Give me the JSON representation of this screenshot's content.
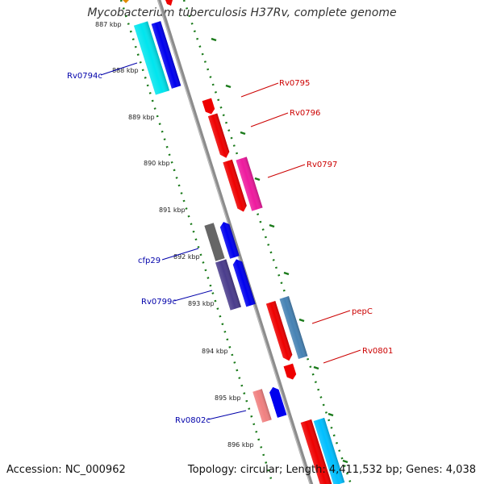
{
  "title": "Mycobacterium tuberculosis H37Rv, complete genome",
  "footer": {
    "accession": "Accession: NC_000962",
    "summary": "Topology: circular; Length: 4,411,532 bp; Genes: 4,038"
  },
  "ruler": {
    "ticks": [
      "887 kbp",
      "888 kbp",
      "889 kbp",
      "890 kbp",
      "891 kbp",
      "892 kbp",
      "893 kbp",
      "894 kbp",
      "895 kbp",
      "896 kbp"
    ]
  },
  "colors": {
    "backbone": "#8c8c8c",
    "forward_label": "#cc0000",
    "reverse_label": "#0000aa",
    "tick_dots": "#1a7a1a"
  },
  "genes": [
    {
      "name": "Rv0794c",
      "strand": "reverse",
      "color": "#00e5ee"
    },
    {
      "name": "",
      "strand": "reverse",
      "color": "#0000ee"
    },
    {
      "name": "Rv0795",
      "strand": "forward",
      "color": "#ee0000"
    },
    {
      "name": "Rv0796",
      "strand": "forward",
      "color": "#ee0000"
    },
    {
      "name": "Rv0797",
      "strand": "forward",
      "color": "#ee0000"
    },
    {
      "name": "",
      "strand": "forward",
      "color": "#ee1a9e"
    },
    {
      "name": "cfp29",
      "strand": "reverse",
      "color": "#0000ee"
    },
    {
      "name": "",
      "strand": "reverse",
      "color": "#666666"
    },
    {
      "name": "Rv0799c",
      "strand": "reverse",
      "color": "#0000ee"
    },
    {
      "name": "",
      "strand": "reverse",
      "color": "#4a3c8c"
    },
    {
      "name": "pepC",
      "strand": "forward",
      "color": "#4682b4"
    },
    {
      "name": "Rv0801",
      "strand": "forward",
      "color": "#ee0000"
    },
    {
      "name": "",
      "strand": "forward",
      "color": "#ee0000"
    },
    {
      "name": "Rv0802c",
      "strand": "reverse",
      "color": "#0000ee"
    },
    {
      "name": "",
      "strand": "forward",
      "color": "#f08080"
    },
    {
      "name": "",
      "strand": "forward",
      "color": "#ee0000"
    },
    {
      "name": "",
      "strand": "forward",
      "color": "#00bfff"
    }
  ]
}
